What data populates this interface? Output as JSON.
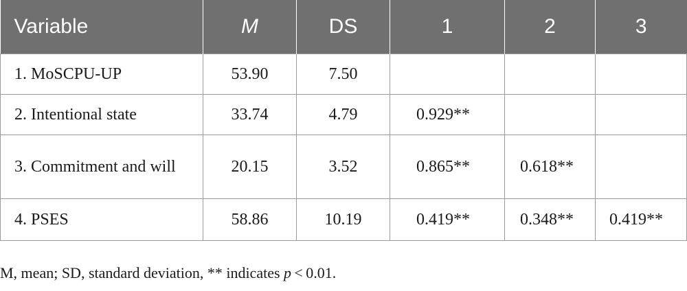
{
  "table": {
    "headers": [
      "Variable",
      "M",
      "DS",
      "1",
      "2",
      "3"
    ],
    "rows": [
      [
        "1. MoSCPU-UP",
        "53.90",
        "7.50",
        "",
        "",
        ""
      ],
      [
        "2. Intentional state",
        "33.74",
        "4.79",
        "0.929**",
        "",
        ""
      ],
      [
        "3. Commitment and will",
        "20.15",
        "3.52",
        "0.865**",
        "0.618**",
        ""
      ],
      [
        "4. PSES",
        "58.86",
        "10.19",
        "0.419**",
        "0.348**",
        "0.419**"
      ]
    ]
  },
  "footnote": {
    "text_before": "M, mean; SD, standard deviation, ** indicates ",
    "p_symbol": "p",
    "text_after": " < 0.01."
  }
}
